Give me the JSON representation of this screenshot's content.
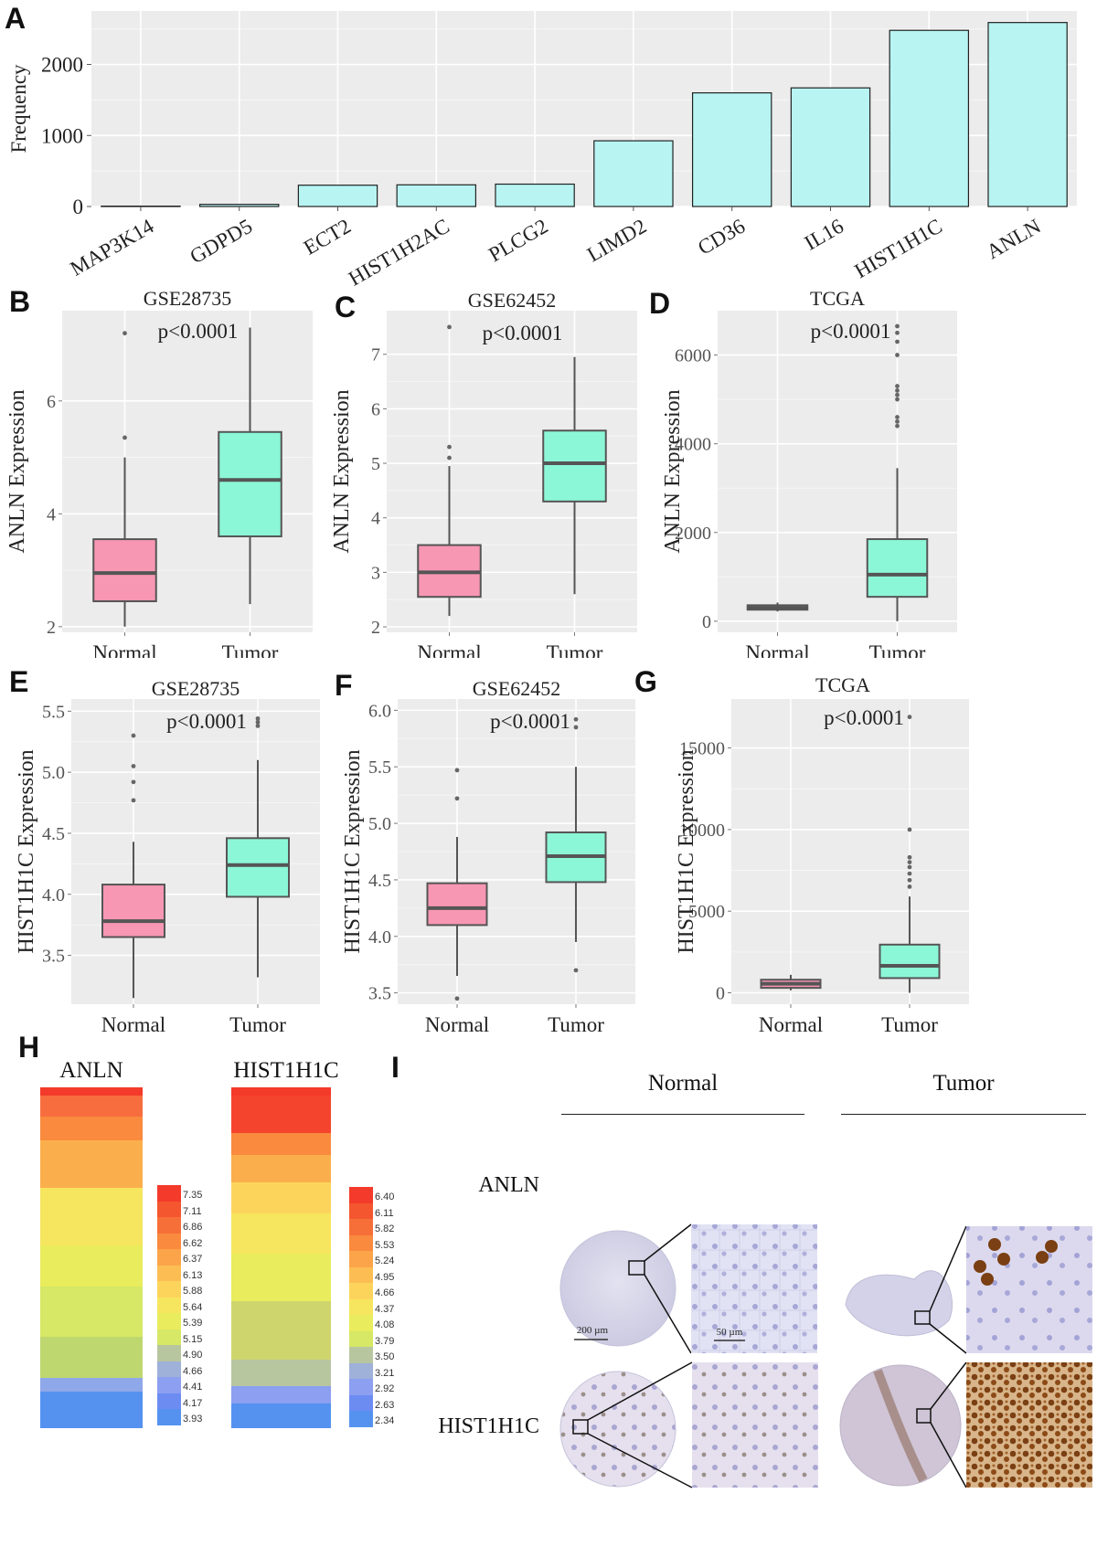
{
  "panels": {
    "A": "A",
    "B": "B",
    "C": "C",
    "D": "D",
    "E": "E",
    "F": "F",
    "G": "G",
    "H": "H",
    "I": "I"
  },
  "chart_data": [
    {
      "id": "A",
      "type": "bar",
      "ylabel": "Frequency",
      "categories": [
        "MAP3K14",
        "GDPD5",
        "ECT2",
        "HIST1H2AC",
        "PLCG2",
        "LIMD2",
        "CD36",
        "IL16",
        "HIST1H1C",
        "ANLN"
      ],
      "values": [
        5,
        30,
        300,
        305,
        315,
        925,
        1600,
        1670,
        2480,
        2590
      ],
      "yticks": [
        0,
        1000,
        2000
      ],
      "ylim": [
        0,
        2650
      ],
      "bar_color": "#b7f4f2"
    },
    {
      "id": "B",
      "type": "box",
      "title": "GSE28735",
      "ylabel": "ANLN Expression",
      "annotation": "p<0.0001",
      "categories": [
        "Normal",
        "Tumor"
      ],
      "ylim": [
        1.9,
        7.6
      ],
      "yticks": [
        2,
        4,
        6
      ],
      "boxes": [
        {
          "name": "Normal",
          "min": 2.0,
          "q1": 2.45,
          "median": 2.95,
          "q3": 3.55,
          "max": 5.0,
          "outliers": [
            5.35,
            7.2
          ],
          "color": "#f897b4"
        },
        {
          "name": "Tumor",
          "min": 2.4,
          "q1": 3.6,
          "median": 4.6,
          "q3": 5.45,
          "max": 7.3,
          "outliers": [],
          "color": "#8cf7d7"
        }
      ]
    },
    {
      "id": "C",
      "type": "box",
      "title": "GSE62452",
      "ylabel": "ANLN Expression",
      "annotation": "p<0.0001",
      "categories": [
        "Normal",
        "Tumor"
      ],
      "ylim": [
        1.9,
        7.8
      ],
      "yticks": [
        2,
        3,
        4,
        5,
        6,
        7
      ],
      "boxes": [
        {
          "name": "Normal",
          "min": 2.2,
          "q1": 2.55,
          "median": 3.0,
          "q3": 3.5,
          "max": 4.95,
          "outliers": [
            5.1,
            5.3,
            7.5
          ],
          "color": "#f897b4"
        },
        {
          "name": "Tumor",
          "min": 2.6,
          "q1": 4.3,
          "median": 5.0,
          "q3": 5.6,
          "max": 6.95,
          "outliers": [],
          "color": "#8cf7d7"
        }
      ]
    },
    {
      "id": "D",
      "type": "box",
      "title": "TCGA",
      "ylabel": "ANLN Expression",
      "annotation": "p<0.0001",
      "categories": [
        "Normal",
        "Tumor"
      ],
      "ylim": [
        -250,
        7000
      ],
      "yticks": [
        0,
        2000,
        4000,
        6000
      ],
      "boxes": [
        {
          "name": "Normal",
          "min": 220,
          "q1": 260,
          "median": 300,
          "q3": 360,
          "max": 420,
          "outliers": [],
          "color": "#f897b4"
        },
        {
          "name": "Tumor",
          "min": 0,
          "q1": 550,
          "median": 1050,
          "q3": 1850,
          "max": 3450,
          "outliers": [
            4400,
            4500,
            4600,
            5000,
            5100,
            5200,
            5300,
            6000,
            6300,
            6500,
            6650
          ],
          "color": "#8cf7d7"
        }
      ]
    },
    {
      "id": "E",
      "type": "box",
      "title": "GSE28735",
      "ylabel": "HIST1H1C Expression",
      "annotation": "p<0.0001",
      "categories": [
        "Normal",
        "Tumor"
      ],
      "ylim": [
        3.1,
        5.6
      ],
      "yticks": [
        3.5,
        4.0,
        4.5,
        5.0,
        5.5
      ],
      "boxes": [
        {
          "name": "Normal",
          "min": 3.15,
          "q1": 3.65,
          "median": 3.78,
          "q3": 4.08,
          "max": 4.43,
          "outliers": [
            4.77,
            4.92,
            5.05,
            5.3
          ],
          "color": "#f897b4"
        },
        {
          "name": "Tumor",
          "min": 3.32,
          "q1": 3.98,
          "median": 4.24,
          "q3": 4.46,
          "max": 5.1,
          "outliers": [
            5.38,
            5.41,
            5.44
          ],
          "color": "#8cf7d7"
        }
      ]
    },
    {
      "id": "F",
      "type": "box",
      "title": "GSE62452",
      "ylabel": "HIST1H1C Expression",
      "annotation": "p<0.0001",
      "categories": [
        "Normal",
        "Tumor"
      ],
      "ylim": [
        3.4,
        6.1
      ],
      "yticks": [
        3.5,
        4.0,
        4.5,
        5.0,
        5.5,
        6.0
      ],
      "boxes": [
        {
          "name": "Normal",
          "min": 3.65,
          "q1": 4.1,
          "median": 4.25,
          "q3": 4.47,
          "max": 4.88,
          "outliers": [
            3.45,
            5.22,
            5.47
          ],
          "color": "#f897b4"
        },
        {
          "name": "Tumor",
          "min": 3.95,
          "q1": 4.48,
          "median": 4.71,
          "q3": 4.92,
          "max": 5.5,
          "outliers": [
            3.7,
            5.85,
            5.92
          ],
          "color": "#8cf7d7"
        }
      ]
    },
    {
      "id": "G",
      "type": "box",
      "title": "TCGA",
      "ylabel": "HIST1H1C Expression",
      "annotation": "p<0.0001",
      "categories": [
        "Normal",
        "Tumor"
      ],
      "ylim": [
        -700,
        18000
      ],
      "yticks": [
        0,
        5000,
        10000,
        15000
      ],
      "boxes": [
        {
          "name": "Normal",
          "min": 150,
          "q1": 300,
          "median": 550,
          "q3": 800,
          "max": 1100,
          "outliers": [],
          "color": "#f897b4"
        },
        {
          "name": "Tumor",
          "min": 0,
          "q1": 900,
          "median": 1650,
          "q3": 2950,
          "max": 5900,
          "outliers": [
            6500,
            6900,
            7300,
            7700,
            8000,
            8300,
            10000,
            16900
          ],
          "color": "#8cf7d7"
        }
      ]
    }
  ],
  "heatmap": {
    "anln_title": "ANLN",
    "hist_title": "HIST1H1C",
    "anln_legend": [
      "7.35",
      "7.11",
      "6.86",
      "6.62",
      "6.37",
      "6.13",
      "5.88",
      "5.64",
      "5.39",
      "5.15",
      "4.90",
      "4.66",
      "4.41",
      "4.17",
      "3.93"
    ],
    "hist_legend": [
      "6.40",
      "6.11",
      "5.82",
      "5.53",
      "5.24",
      "4.95",
      "4.66",
      "4.37",
      "4.08",
      "3.79",
      "3.50",
      "3.21",
      "2.92",
      "2.63",
      "2.34"
    ],
    "legend_colors": [
      "#f43a2a",
      "#f4562f",
      "#f76f38",
      "#f98a3e",
      "#fba44a",
      "#fcbd53",
      "#fcd45c",
      "#f6e55e",
      "#e9ec5c",
      "#d6e865",
      "#b8c6a0",
      "#9fb0d9",
      "#8c9ff0",
      "#6d8cf2",
      "#5592f0"
    ],
    "anln_blocks": [
      {
        "color": "#f43a2a",
        "frac": 0.025
      },
      {
        "color": "#f76d3e",
        "frac": 0.06
      },
      {
        "color": "#f98a3e",
        "frac": 0.07
      },
      {
        "color": "#fbaf4c",
        "frac": 0.14
      },
      {
        "color": "#f6e55e",
        "frac": 0.17
      },
      {
        "color": "#e9ec5c",
        "frac": 0.12
      },
      {
        "color": "#d6e865",
        "frac": 0.15
      },
      {
        "color": "#bfd76f",
        "frac": 0.12
      },
      {
        "color": "#8fa8ea",
        "frac": 0.04
      },
      {
        "color": "#5592f0",
        "frac": 0.105
      }
    ],
    "hist_blocks": [
      {
        "color": "#f43a2a",
        "frac": 0.025
      },
      {
        "color": "#f5442d",
        "frac": 0.11
      },
      {
        "color": "#f98a3e",
        "frac": 0.065
      },
      {
        "color": "#fbaf4c",
        "frac": 0.08
      },
      {
        "color": "#fcd45c",
        "frac": 0.09
      },
      {
        "color": "#f6e55e",
        "frac": 0.12
      },
      {
        "color": "#e9ec5c",
        "frac": 0.14
      },
      {
        "color": "#cfd56d",
        "frac": 0.17
      },
      {
        "color": "#b8c6a0",
        "frac": 0.08
      },
      {
        "color": "#8c9ff0",
        "frac": 0.05
      },
      {
        "color": "#5592f0",
        "frac": 0.07
      }
    ]
  },
  "tissue": {
    "col_normal": "Normal",
    "col_tumor": "Tumor",
    "row_anln": "ANLN",
    "row_hist": "HIST1H1C",
    "scale_200": "200 µm",
    "scale_50": "50 µm"
  }
}
